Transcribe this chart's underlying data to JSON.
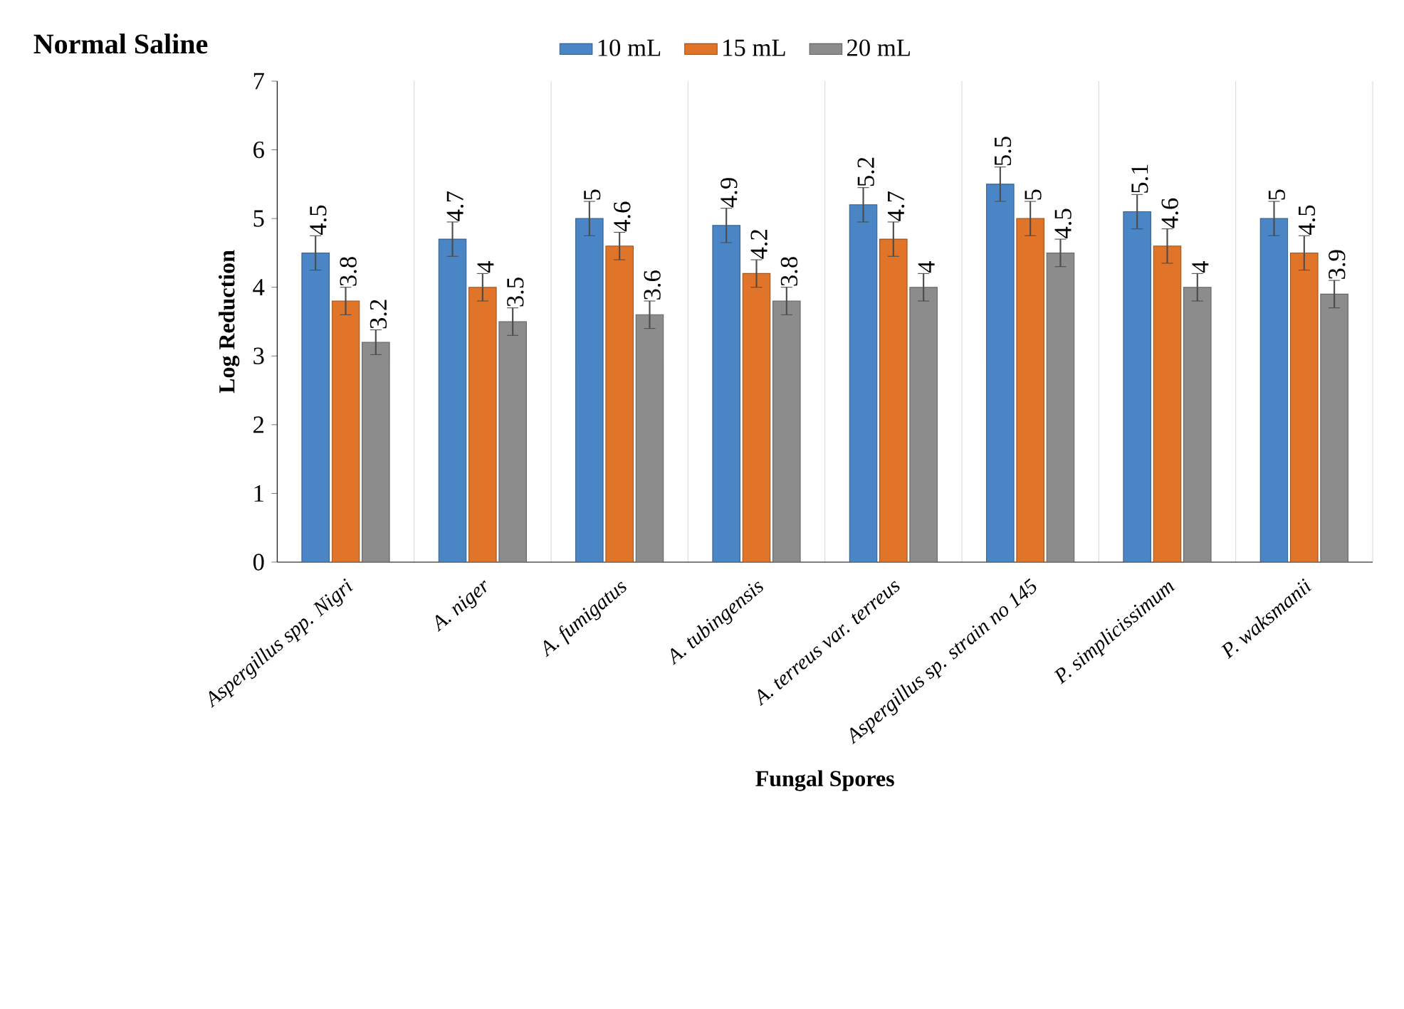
{
  "chart_data": {
    "type": "bar",
    "title": "Normal Saline",
    "xlabel": "Fungal Spores",
    "ylabel": "Log Reduction",
    "categories": [
      "Aspergillus spp. Nigri",
      "A. niger",
      "A. fumigatus",
      "A. tubingensis",
      "A. terreus var. terreus",
      "Aspergillus sp. strain no 145",
      "P. simplicissimum",
      "P. waksmanii"
    ],
    "series": [
      {
        "name": "10 mL",
        "color": "#4a86c5",
        "values": [
          4.5,
          4.7,
          5,
          4.9,
          5.2,
          5.5,
          5.1,
          5
        ],
        "errors": [
          0.25,
          0.25,
          0.25,
          0.25,
          0.25,
          0.25,
          0.25,
          0.25
        ]
      },
      {
        "name": "15 mL",
        "color": "#e07428",
        "values": [
          3.8,
          4,
          4.6,
          4.2,
          4.7,
          5,
          4.6,
          4.5
        ],
        "errors": [
          0.2,
          0.2,
          0.2,
          0.2,
          0.25,
          0.25,
          0.25,
          0.25
        ]
      },
      {
        "name": "20 mL",
        "color": "#8c8c8c",
        "values": [
          3.2,
          3.5,
          3.6,
          3.8,
          4,
          4.5,
          4,
          3.9
        ],
        "errors": [
          0.18,
          0.2,
          0.2,
          0.2,
          0.2,
          0.2,
          0.2,
          0.2
        ]
      }
    ],
    "ylim": [
      0,
      7
    ],
    "yticks": [
      0,
      1,
      2,
      3,
      4,
      5,
      6,
      7
    ],
    "grid": "x",
    "legend": "top",
    "data_labels": true
  }
}
